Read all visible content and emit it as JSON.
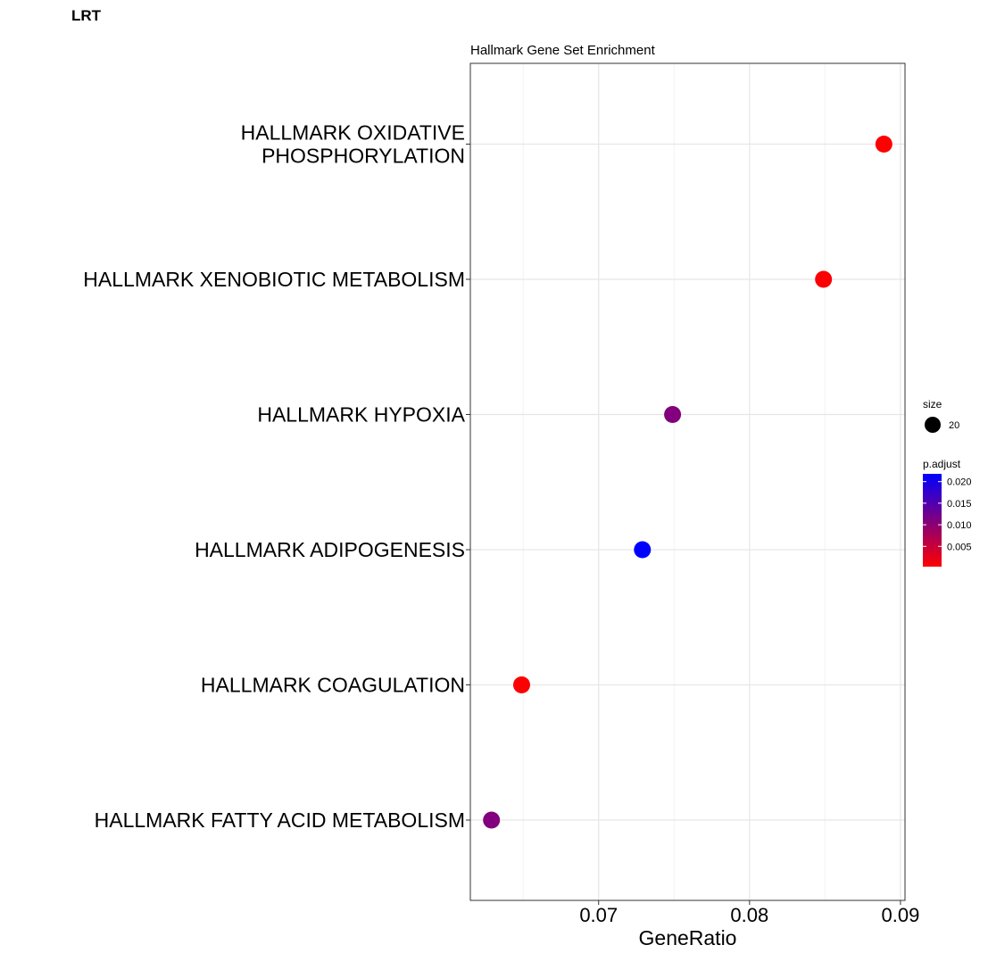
{
  "page_label": "LRT",
  "chart_data": {
    "type": "scatter",
    "title": "Hallmark Gene Set Enrichment",
    "xlabel": "GeneRatio",
    "ylabel": "",
    "xlim": [
      0.0615,
      0.0903
    ],
    "x_ticks": [
      0.07,
      0.08,
      0.09
    ],
    "x_tick_labels": [
      "0.07",
      "0.08",
      "0.09"
    ],
    "grid": true,
    "categories": [
      [
        "HALLMARK OXIDATIVE",
        "PHOSPHORYLATION"
      ],
      [
        "HALLMARK XENOBIOTIC METABOLISM"
      ],
      [
        "HALLMARK HYPOXIA"
      ],
      [
        "HALLMARK ADIPOGENESIS"
      ],
      [
        "HALLMARK COAGULATION"
      ],
      [
        "HALLMARK FATTY ACID METABOLISM"
      ]
    ],
    "points": [
      {
        "x": 0.0889,
        "p_adjust": 0.0005,
        "size": 20
      },
      {
        "x": 0.0849,
        "p_adjust": 0.0006,
        "size": 20
      },
      {
        "x": 0.0749,
        "p_adjust": 0.0108,
        "size": 20
      },
      {
        "x": 0.0729,
        "p_adjust": 0.0218,
        "size": 20
      },
      {
        "x": 0.0649,
        "p_adjust": 0.0005,
        "size": 20
      },
      {
        "x": 0.0629,
        "p_adjust": 0.0108,
        "size": 20
      }
    ],
    "legend_placement": "right",
    "size_legend": {
      "title": "size",
      "value_label": "20"
    },
    "color_legend": {
      "title": "p.adjust",
      "range": [
        0.0003,
        0.0218
      ],
      "low_color": "#ff0000",
      "high_color": "#0000ff",
      "ticks": [
        0.02,
        0.015,
        0.01,
        0.005
      ],
      "tick_labels": [
        "0.020",
        "0.015",
        "0.010",
        "0.005"
      ]
    }
  }
}
